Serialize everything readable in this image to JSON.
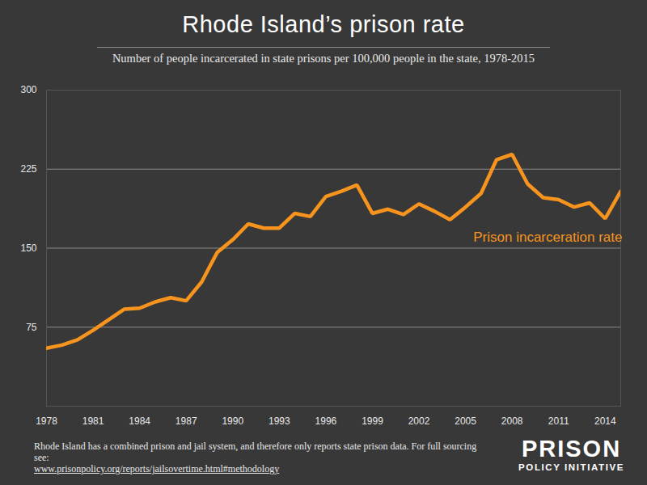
{
  "chart_data": {
    "type": "line",
    "title": "Rhode Island’s prison rate",
    "subtitle": "Number of people incarcerated in state prisons per 100,000 people in the state, 1978-2015",
    "caption": "Rhode Island has a combined prison and jail system, and therefore only reports state prison data. For full sourcing see:",
    "caption_link": "www.prisonpolicy.org/reports/jailsovertime.html#methodology",
    "logo_lines": [
      "PRISON",
      "POLICY INITIATIVE"
    ],
    "x": [
      1978,
      1979,
      1980,
      1981,
      1982,
      1983,
      1984,
      1985,
      1986,
      1987,
      1988,
      1989,
      1990,
      1991,
      1992,
      1993,
      1994,
      1995,
      1996,
      1997,
      1998,
      1999,
      2000,
      2001,
      2002,
      2003,
      2004,
      2005,
      2006,
      2007,
      2008,
      2009,
      2010,
      2011,
      2012,
      2013,
      2014,
      2015
    ],
    "series": [
      {
        "name": "Prison incarceration rate",
        "color": "#f7941d",
        "values": [
          55,
          58,
          63,
          72,
          82,
          92,
          93,
          99,
          103,
          100,
          118,
          146,
          158,
          173,
          169,
          169,
          183,
          180,
          199,
          204,
          210,
          183,
          187,
          182,
          192,
          185,
          177,
          189,
          202,
          234,
          239,
          211,
          198,
          196,
          189,
          193,
          178,
          204
        ]
      }
    ],
    "xlim": [
      1978,
      2015
    ],
    "xticks": [
      1978,
      1981,
      1984,
      1987,
      1990,
      1993,
      1996,
      1999,
      2002,
      2005,
      2008,
      2011,
      2014
    ],
    "ylim": [
      0,
      300
    ],
    "yticks": [
      75,
      150,
      225,
      300
    ],
    "grid": true
  }
}
